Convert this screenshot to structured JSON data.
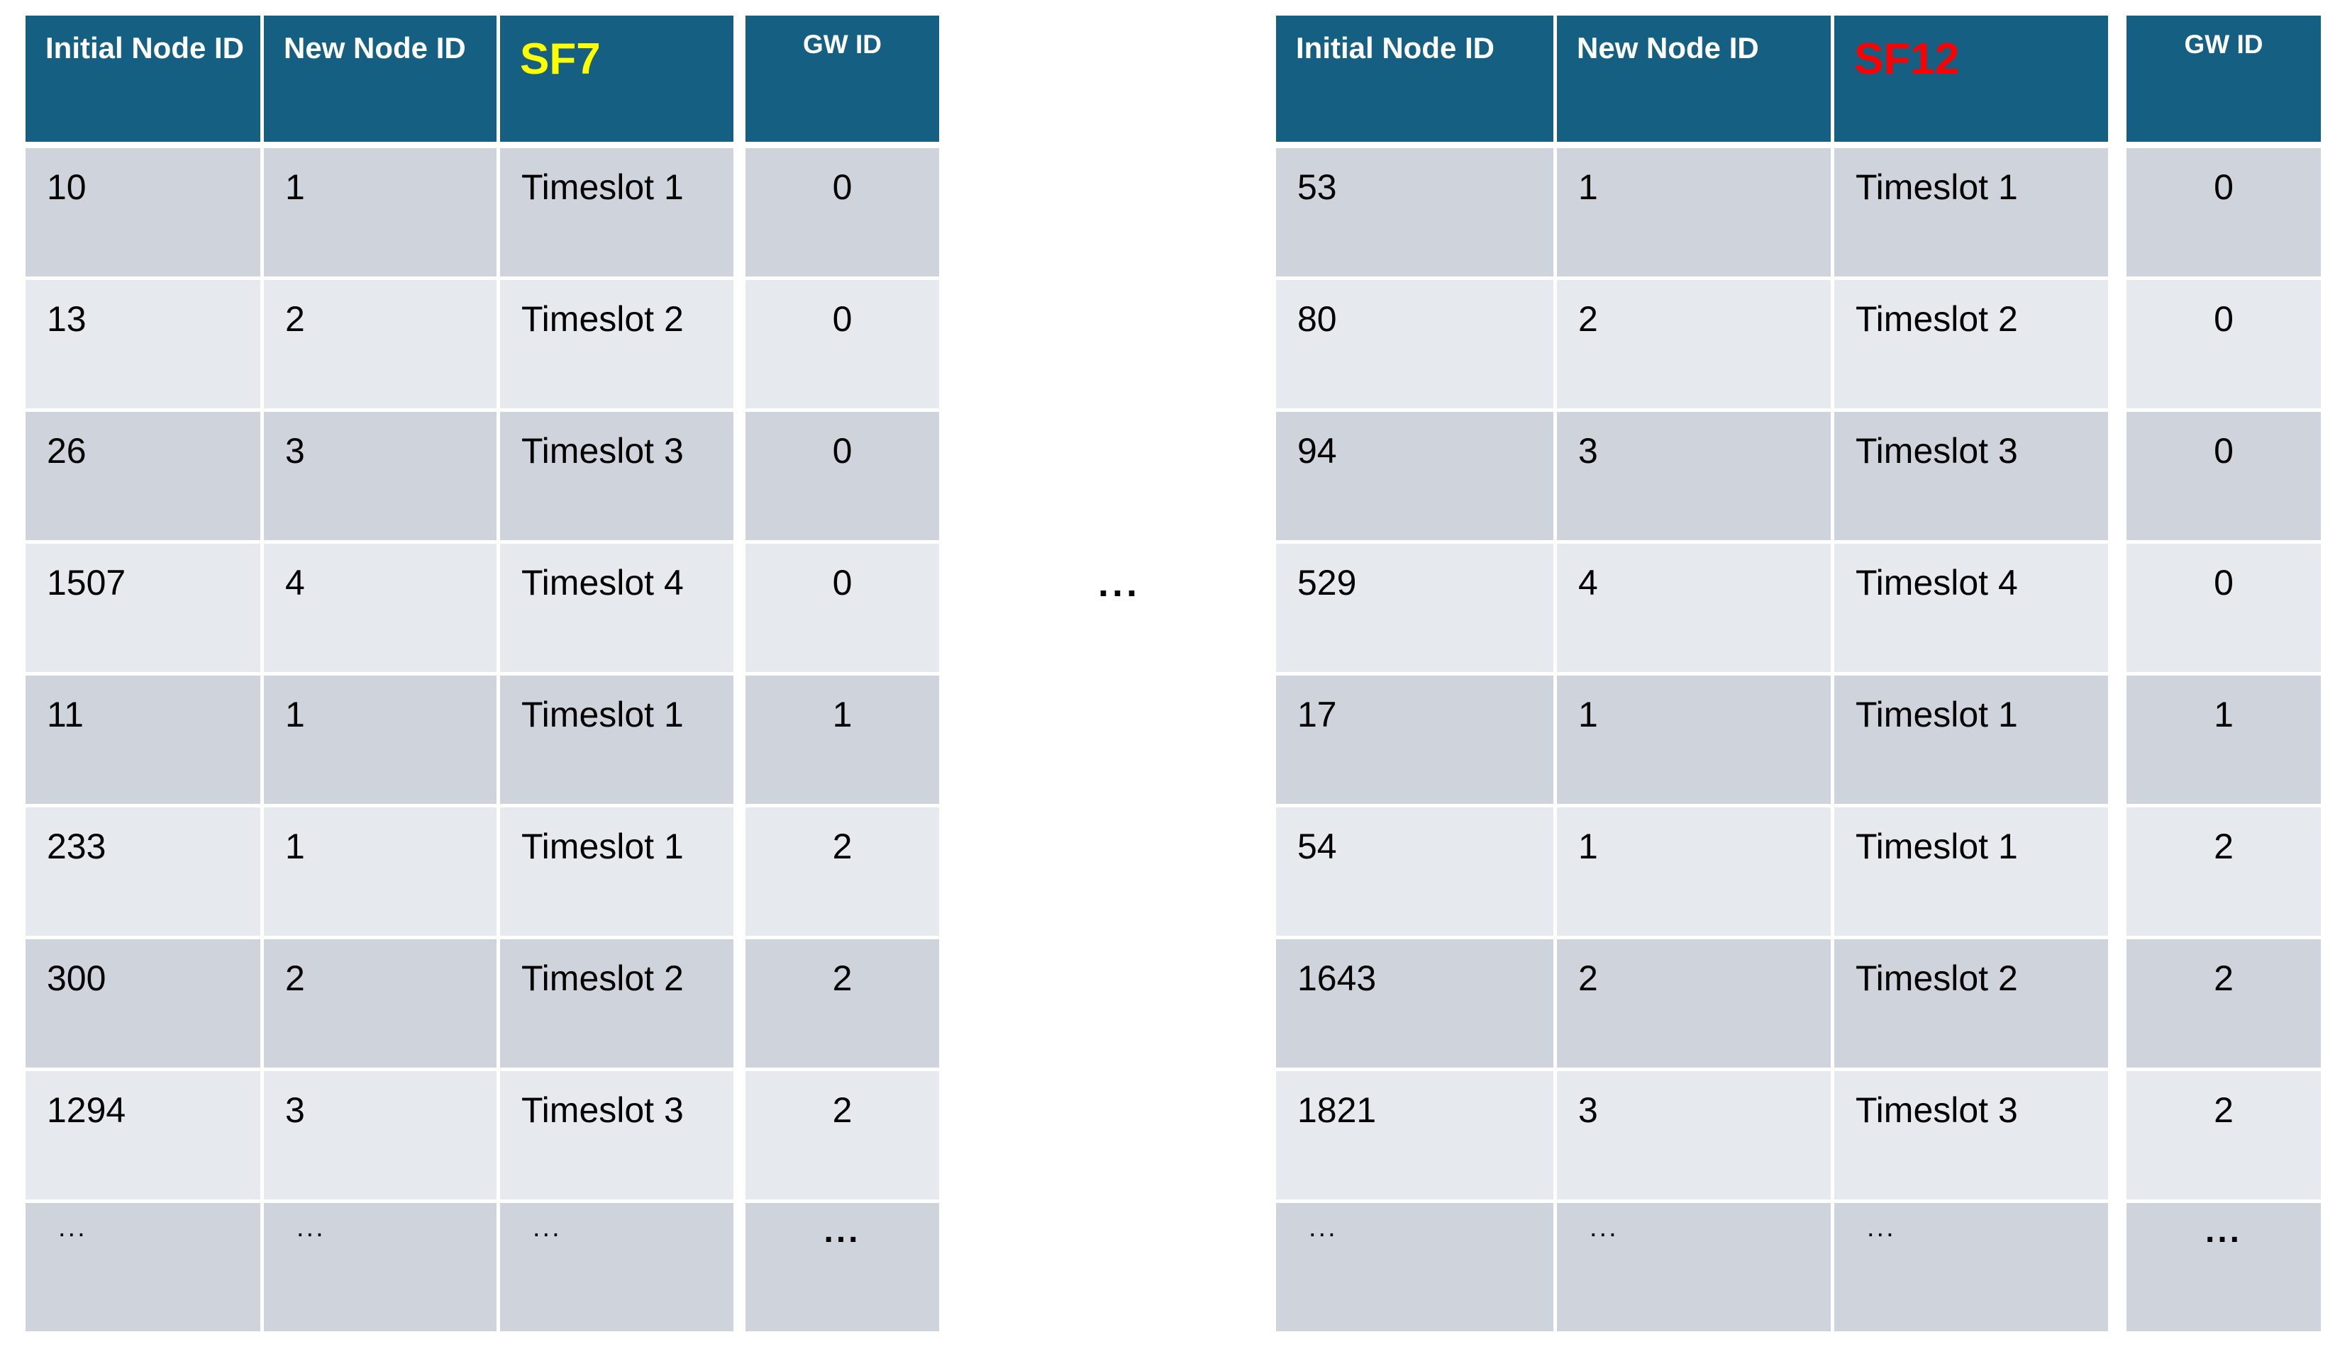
{
  "page": {
    "separator": "...",
    "background": "#FFFFFF"
  },
  "colors": {
    "header_bg": "#156082",
    "row_dark": "#CED3DC",
    "row_light": "#E6EAEF",
    "header_text": "#FFFFFF",
    "body_text": "#000000",
    "sf7_label": "#FFFF00",
    "sf12_label": "#FF0000"
  },
  "tables": [
    {
      "name": "SF7 schedule table",
      "headers": {
        "initial": "Initial Node ID",
        "new": "New Node ID",
        "sf": "SF7",
        "gw": "GW ID"
      },
      "rows": [
        {
          "initial": "10",
          "new": "1",
          "timeslot": "Timeslot 1",
          "gw": "0"
        },
        {
          "initial": "13",
          "new": "2",
          "timeslot": "Timeslot 2",
          "gw": "0"
        },
        {
          "initial": "26",
          "new": "3",
          "timeslot": "Timeslot 3",
          "gw": "0"
        },
        {
          "initial": "1507",
          "new": "4",
          "timeslot": "Timeslot 4",
          "gw": "0"
        },
        {
          "initial": "11",
          "new": "1",
          "timeslot": "Timeslot 1",
          "gw": "1"
        },
        {
          "initial": "233",
          "new": "1",
          "timeslot": "Timeslot 1",
          "gw": "2"
        },
        {
          "initial": "300",
          "new": "2",
          "timeslot": "Timeslot 2",
          "gw": "2"
        },
        {
          "initial": "1294",
          "new": "3",
          "timeslot": "Timeslot 3",
          "gw": "2"
        },
        {
          "initial": "...",
          "new": "...",
          "timeslot": "...",
          "gw": "..."
        }
      ]
    },
    {
      "name": "SF12 schedule table",
      "headers": {
        "initial": "Initial Node ID",
        "new": "New Node ID",
        "sf": "SF12",
        "gw": "GW ID"
      },
      "rows": [
        {
          "initial": "53",
          "new": "1",
          "timeslot": "Timeslot 1",
          "gw": "0"
        },
        {
          "initial": "80",
          "new": "2",
          "timeslot": "Timeslot 2",
          "gw": "0"
        },
        {
          "initial": "94",
          "new": "3",
          "timeslot": "Timeslot 3",
          "gw": "0"
        },
        {
          "initial": "529",
          "new": "4",
          "timeslot": "Timeslot 4",
          "gw": "0"
        },
        {
          "initial": "17",
          "new": "1",
          "timeslot": "Timeslot 1",
          "gw": "1"
        },
        {
          "initial": "54",
          "new": "1",
          "timeslot": "Timeslot 1",
          "gw": "2"
        },
        {
          "initial": "1643",
          "new": "2",
          "timeslot": "Timeslot 2",
          "gw": "2"
        },
        {
          "initial": "1821",
          "new": "3",
          "timeslot": "Timeslot 3",
          "gw": "2"
        },
        {
          "initial": "...",
          "new": "...",
          "timeslot": "...",
          "gw": "..."
        }
      ]
    }
  ]
}
